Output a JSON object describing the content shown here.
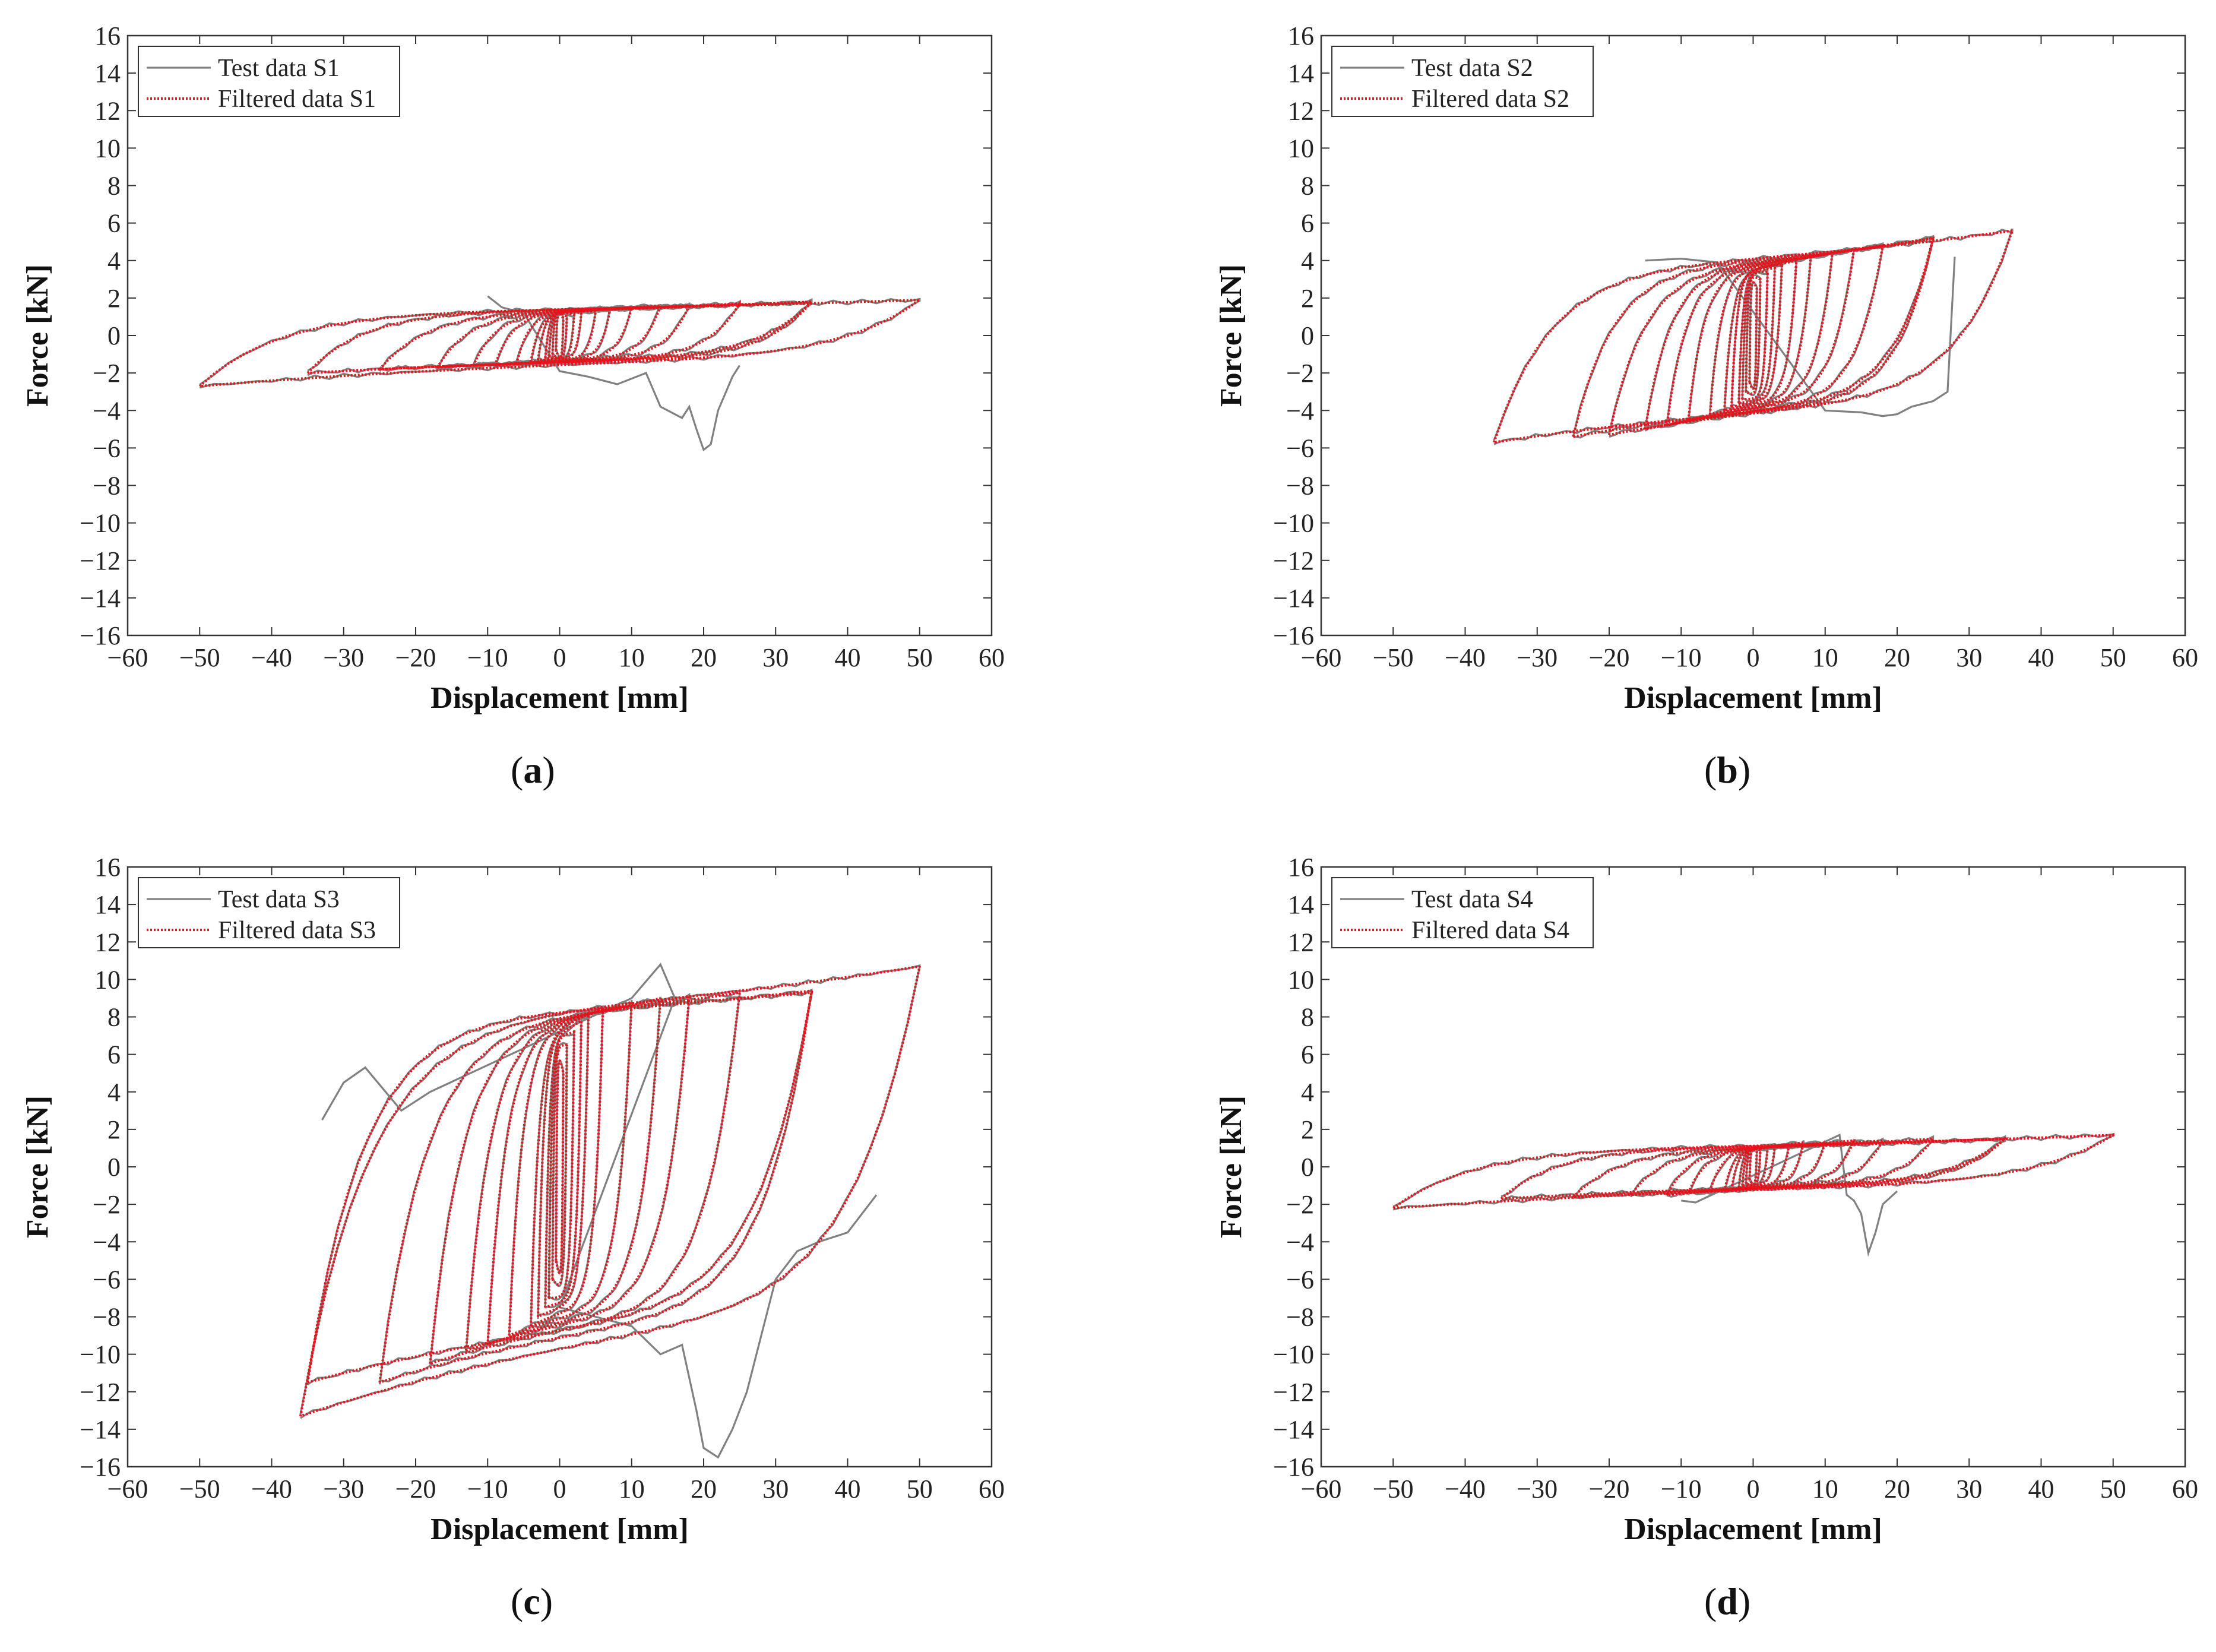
{
  "colors": {
    "test": "#808080",
    "filtered": "#e8131b",
    "axis": "#333333"
  },
  "chart_data": [
    {
      "id": "a",
      "caption_letter": "a",
      "type": "line",
      "xlabel": "Displacement [mm]",
      "ylabel": "Force [kN]",
      "xlim": [
        -60,
        60
      ],
      "ylim": [
        -16,
        16
      ],
      "xticks": [
        -60,
        -50,
        -40,
        -30,
        -20,
        -10,
        0,
        10,
        20,
        30,
        40,
        50,
        60
      ],
      "yticks": [
        -16,
        -14,
        -12,
        -10,
        -8,
        -6,
        -4,
        -2,
        0,
        2,
        4,
        6,
        8,
        10,
        12,
        14,
        16
      ],
      "legend_position": "top-left",
      "series": [
        {
          "name": "Test data S1",
          "style": "solid",
          "color": "#808080"
        },
        {
          "name": "Filtered data S1",
          "style": "dotted",
          "color": "#e8131b"
        }
      ],
      "loops": [
        {
          "dmin": -0.5,
          "dmax": 0.5,
          "fneg": -0.8,
          "fpos": 0.9,
          "fy": 1.3
        },
        {
          "dmin": -1,
          "dmax": 1,
          "fneg": -1.0,
          "fpos": 1.0,
          "fy": 1.3
        },
        {
          "dmin": -1.5,
          "dmax": 2,
          "fneg": -1.1,
          "fpos": 1.1,
          "fy": 1.3
        },
        {
          "dmin": -2,
          "dmax": 3,
          "fneg": -1.2,
          "fpos": 1.2,
          "fy": 1.3
        },
        {
          "dmin": -3,
          "dmax": 5,
          "fneg": -1.3,
          "fpos": 1.3,
          "fy": 1.3
        },
        {
          "dmin": -4,
          "dmax": 7,
          "fneg": -1.4,
          "fpos": 1.4,
          "fy": 1.3
        },
        {
          "dmin": -6,
          "dmax": 10,
          "fneg": -1.5,
          "fpos": 1.5,
          "fy": 1.3
        },
        {
          "dmin": -9,
          "dmax": 14,
          "fneg": -1.6,
          "fpos": 1.6,
          "fy": 1.3
        },
        {
          "dmin": -12,
          "dmax": 18,
          "fneg": -1.6,
          "fpos": 1.6,
          "fy": 1.3
        },
        {
          "dmin": -17,
          "dmax": 25,
          "fneg": -1.7,
          "fpos": 1.7,
          "fy": 1.3
        },
        {
          "dmin": -25,
          "dmax": 35,
          "fneg": -1.8,
          "fpos": 1.8,
          "fy": 1.3
        },
        {
          "dmin": -35,
          "dmax": 35,
          "fneg": -2.0,
          "fpos": 1.8,
          "fy": 1.3
        },
        {
          "dmin": -50,
          "dmax": 50,
          "fneg": -2.7,
          "fpos": 1.9,
          "fy": 1.3
        }
      ],
      "test_extra": [
        [
          -10,
          2.1
        ],
        [
          -8,
          1.5
        ],
        [
          -5,
          1.2
        ],
        [
          0,
          -1.9
        ],
        [
          4,
          -2.2
        ],
        [
          8,
          -2.6
        ],
        [
          12,
          -2.0
        ],
        [
          14,
          -3.8
        ],
        [
          17,
          -4.4
        ],
        [
          18,
          -3.8
        ],
        [
          19,
          -5.0
        ],
        [
          20,
          -6.1
        ],
        [
          21,
          -5.8
        ],
        [
          22,
          -4.0
        ],
        [
          24,
          -2.2
        ],
        [
          25,
          -1.6
        ]
      ]
    },
    {
      "id": "b",
      "caption_letter": "b",
      "type": "line",
      "xlabel": "Displacement [mm]",
      "ylabel": "Force [kN]",
      "xlim": [
        -60,
        60
      ],
      "ylim": [
        -16,
        16
      ],
      "xticks": [
        -60,
        -50,
        -40,
        -30,
        -20,
        -10,
        0,
        10,
        20,
        30,
        40,
        50,
        60
      ],
      "yticks": [
        -16,
        -14,
        -12,
        -10,
        -8,
        -6,
        -4,
        -2,
        0,
        2,
        4,
        6,
        8,
        10,
        12,
        14,
        16
      ],
      "legend_position": "top-left",
      "series": [
        {
          "name": "Test data S2",
          "style": "solid",
          "color": "#808080"
        },
        {
          "name": "Filtered data S2",
          "style": "dotted",
          "color": "#e8131b"
        }
      ],
      "loops": [
        {
          "dmin": -0.5,
          "dmax": 0.5,
          "fneg": -2.5,
          "fpos": 2.5,
          "fy": 3.0
        },
        {
          "dmin": -1,
          "dmax": 1,
          "fneg": -3.0,
          "fpos": 3.0,
          "fy": 3.2
        },
        {
          "dmin": -1.5,
          "dmax": 2,
          "fneg": -3.4,
          "fpos": 3.4,
          "fy": 3.4
        },
        {
          "dmin": -2,
          "dmax": 3,
          "fneg": -3.6,
          "fpos": 3.6,
          "fy": 3.5
        },
        {
          "dmin": -3,
          "dmax": 4,
          "fneg": -3.8,
          "fpos": 3.8,
          "fy": 3.6
        },
        {
          "dmin": -4,
          "dmax": 6,
          "fneg": -4.0,
          "fpos": 4.0,
          "fy": 3.6
        },
        {
          "dmin": -6,
          "dmax": 8,
          "fneg": -4.2,
          "fpos": 4.2,
          "fy": 3.7
        },
        {
          "dmin": -9,
          "dmax": 11,
          "fneg": -4.5,
          "fpos": 4.4,
          "fy": 3.7
        },
        {
          "dmin": -12,
          "dmax": 14,
          "fneg": -4.8,
          "fpos": 4.6,
          "fy": 3.7
        },
        {
          "dmin": -15,
          "dmax": 18,
          "fneg": -5.0,
          "fpos": 4.8,
          "fy": 3.8
        },
        {
          "dmin": -20,
          "dmax": 25,
          "fneg": -5.3,
          "fpos": 5.2,
          "fy": 3.8
        },
        {
          "dmin": -25,
          "dmax": 25,
          "fneg": -5.4,
          "fpos": 5.2,
          "fy": 3.8
        },
        {
          "dmin": -36,
          "dmax": 36,
          "fneg": -5.7,
          "fpos": 5.6,
          "fy": 3.8
        }
      ],
      "test_extra": [
        [
          -15,
          4.0
        ],
        [
          -10,
          4.1
        ],
        [
          -5,
          3.9
        ],
        [
          10,
          -4.0
        ],
        [
          15,
          -4.1
        ],
        [
          18,
          -4.3
        ],
        [
          20,
          -4.2
        ],
        [
          22,
          -3.8
        ],
        [
          25,
          -3.5
        ],
        [
          27,
          -3.0
        ],
        [
          28,
          4.2
        ]
      ]
    },
    {
      "id": "c",
      "caption_letter": "c",
      "type": "line",
      "xlabel": "Displacement [mm]",
      "ylabel": "Force [kN]",
      "xlim": [
        -60,
        60
      ],
      "ylim": [
        -16,
        16
      ],
      "xticks": [
        -60,
        -50,
        -40,
        -30,
        -20,
        -10,
        0,
        10,
        20,
        30,
        40,
        50,
        60
      ],
      "yticks": [
        -16,
        -14,
        -12,
        -10,
        -8,
        -6,
        -4,
        -2,
        0,
        2,
        4,
        6,
        8,
        10,
        12,
        14,
        16
      ],
      "legend_position": "top-left",
      "series": [
        {
          "name": "Test data S3",
          "style": "solid",
          "color": "#808080"
        },
        {
          "name": "Filtered data S3",
          "style": "dotted",
          "color": "#e8131b"
        }
      ],
      "loops": [
        {
          "dmin": -0.5,
          "dmax": 0.5,
          "fneg": -5.0,
          "fpos": 5.0,
          "fy": 6.0
        },
        {
          "dmin": -1,
          "dmax": 1,
          "fneg": -6.0,
          "fpos": 6.5,
          "fy": 6.5
        },
        {
          "dmin": -1.5,
          "dmax": 2,
          "fneg": -7.0,
          "fpos": 7.2,
          "fy": 7.0
        },
        {
          "dmin": -2,
          "dmax": 3,
          "fneg": -7.5,
          "fpos": 7.8,
          "fy": 7.2
        },
        {
          "dmin": -3,
          "dmax": 4,
          "fneg": -8.0,
          "fpos": 8.2,
          "fy": 7.4
        },
        {
          "dmin": -4,
          "dmax": 6,
          "fneg": -8.5,
          "fpos": 8.5,
          "fy": 7.6
        },
        {
          "dmin": -7,
          "dmax": 10,
          "fneg": -9.0,
          "fpos": 8.8,
          "fy": 7.8
        },
        {
          "dmin": -10,
          "dmax": 14,
          "fneg": -9.5,
          "fpos": 9.0,
          "fy": 7.9
        },
        {
          "dmin": -13,
          "dmax": 18,
          "fneg": -9.8,
          "fpos": 9.1,
          "fy": 8.0
        },
        {
          "dmin": -18,
          "dmax": 25,
          "fneg": -10.5,
          "fpos": 9.3,
          "fy": 8.1
        },
        {
          "dmin": -25,
          "dmax": 35,
          "fneg": -11.5,
          "fpos": 9.4,
          "fy": 8.2
        },
        {
          "dmin": -35,
          "dmax": 35,
          "fneg": -11.5,
          "fpos": 9.3,
          "fy": 8.2
        },
        {
          "dmin": -36,
          "dmax": 50,
          "fneg": -13.3,
          "fpos": 10.7,
          "fy": 8.3
        }
      ],
      "test_extra": [
        [
          -33,
          2.5
        ],
        [
          -30,
          4.5
        ],
        [
          -27,
          5.3
        ],
        [
          -22,
          3.0
        ],
        [
          -18,
          4.0
        ],
        [
          10,
          9.0
        ],
        [
          14,
          10.8
        ],
        [
          16,
          9.0
        ],
        [
          0,
          -7.5
        ],
        [
          5,
          -8.0
        ],
        [
          10,
          -8.5
        ],
        [
          14,
          -10.0
        ],
        [
          17,
          -9.5
        ],
        [
          19,
          -13.0
        ],
        [
          20,
          -15.0
        ],
        [
          22,
          -15.5
        ],
        [
          24,
          -14.0
        ],
        [
          26,
          -12.0
        ],
        [
          28,
          -9.0
        ],
        [
          30,
          -6.0
        ],
        [
          33,
          -4.5
        ],
        [
          36,
          -4.0
        ],
        [
          40,
          -3.5
        ],
        [
          44,
          -1.5
        ]
      ]
    },
    {
      "id": "d",
      "caption_letter": "d",
      "type": "line",
      "xlabel": "Displacement [mm]",
      "ylabel": "Force [kN]",
      "xlim": [
        -60,
        60
      ],
      "ylim": [
        -16,
        16
      ],
      "xticks": [
        -60,
        -50,
        -40,
        -30,
        -20,
        -10,
        0,
        10,
        20,
        30,
        40,
        50,
        60
      ],
      "yticks": [
        -16,
        -14,
        -12,
        -10,
        -8,
        -6,
        -4,
        -2,
        0,
        2,
        4,
        6,
        8,
        10,
        12,
        14,
        16
      ],
      "legend_position": "top-left",
      "series": [
        {
          "name": "Test data S4",
          "style": "solid",
          "color": "#808080"
        },
        {
          "name": "Filtered data S4",
          "style": "dotted",
          "color": "#e8131b"
        }
      ],
      "loops": [
        {
          "dmin": -0.5,
          "dmax": 0.5,
          "fneg": -0.7,
          "fpos": 0.8,
          "fy": 1.0
        },
        {
          "dmin": -1,
          "dmax": 1,
          "fneg": -0.9,
          "fpos": 0.9,
          "fy": 1.0
        },
        {
          "dmin": -1.5,
          "dmax": 2,
          "fneg": -1.0,
          "fpos": 1.0,
          "fy": 1.0
        },
        {
          "dmin": -2,
          "dmax": 3,
          "fneg": -1.1,
          "fpos": 1.1,
          "fy": 1.0
        },
        {
          "dmin": -3,
          "dmax": 5,
          "fneg": -1.2,
          "fpos": 1.2,
          "fy": 1.0
        },
        {
          "dmin": -4,
          "dmax": 7,
          "fneg": -1.3,
          "fpos": 1.3,
          "fy": 1.0
        },
        {
          "dmin": -6,
          "dmax": 10,
          "fneg": -1.3,
          "fpos": 1.3,
          "fy": 1.0
        },
        {
          "dmin": -9,
          "dmax": 14,
          "fneg": -1.4,
          "fpos": 1.4,
          "fy": 1.0
        },
        {
          "dmin": -12,
          "dmax": 18,
          "fneg": -1.5,
          "fpos": 1.4,
          "fy": 1.0
        },
        {
          "dmin": -17,
          "dmax": 25,
          "fneg": -1.5,
          "fpos": 1.5,
          "fy": 1.0
        },
        {
          "dmin": -25,
          "dmax": 35,
          "fneg": -1.6,
          "fpos": 1.5,
          "fy": 1.0
        },
        {
          "dmin": -35,
          "dmax": 35,
          "fneg": -1.7,
          "fpos": 1.5,
          "fy": 1.0
        },
        {
          "dmin": -50,
          "dmax": 50,
          "fneg": -2.2,
          "fpos": 1.7,
          "fy": 1.0
        }
      ],
      "test_extra": [
        [
          -10,
          -1.8
        ],
        [
          -8,
          -1.9
        ],
        [
          12,
          1.7
        ],
        [
          13,
          -1.5
        ],
        [
          14,
          -1.8
        ],
        [
          15,
          -2.5
        ],
        [
          16,
          -4.6
        ],
        [
          17,
          -3.5
        ],
        [
          18,
          -2.0
        ],
        [
          20,
          -1.3
        ]
      ]
    }
  ]
}
